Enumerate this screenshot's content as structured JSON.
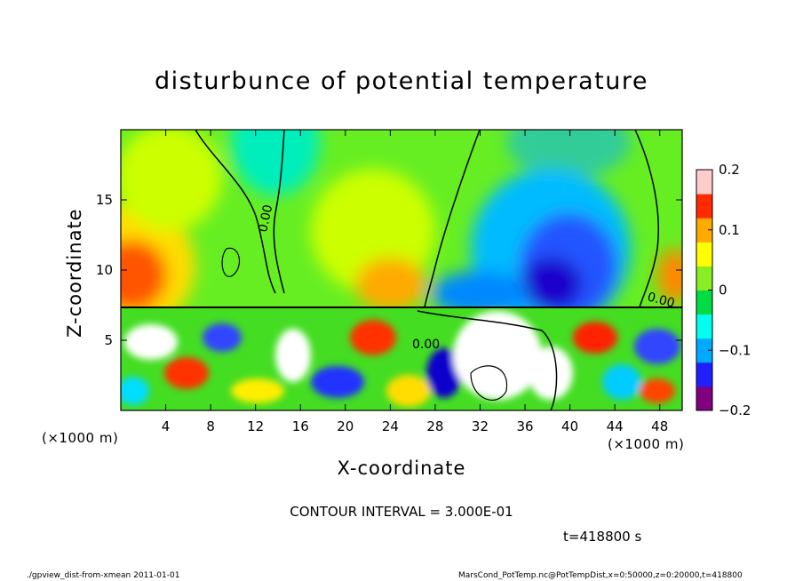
{
  "chart_data": {
    "type": "heatmap",
    "title": "disturbunce of potential temperature",
    "xlabel": "X-coordinate",
    "ylabel": "Z-coordinate",
    "x_unit": "(×1000 m)",
    "y_unit": "(×1000 m)",
    "x_range": [
      0,
      50
    ],
    "y_range": [
      0,
      20
    ],
    "x_ticks": [
      "4",
      "8",
      "12",
      "16",
      "20",
      "24",
      "28",
      "32",
      "36",
      "40",
      "44",
      "48"
    ],
    "y_ticks": [
      "5",
      "10",
      "15"
    ],
    "colorbar": {
      "range": [
        -0.2,
        0.2
      ],
      "tick_labels": [
        "0.2",
        "0.1",
        "0",
        "−0.1",
        "−0.2"
      ],
      "colors": [
        "#800080",
        "#2020ff",
        "#00aaff",
        "#00ffee",
        "#00dd44",
        "#88ee22",
        "#ffff00",
        "#ffaa00",
        "#ff2a00",
        "#ffcccc"
      ]
    },
    "contour_label": "0.00",
    "contour_interval": "CONTOUR INTERVAL = 3.000E-01",
    "time": "t=418800 s"
  },
  "footer": {
    "left": "./gpview_dist-from-xmean  2011-01-01",
    "right": "MarsCond_PotTemp.nc@PotTempDist,x=0:50000,z=0:20000,t=418800"
  }
}
